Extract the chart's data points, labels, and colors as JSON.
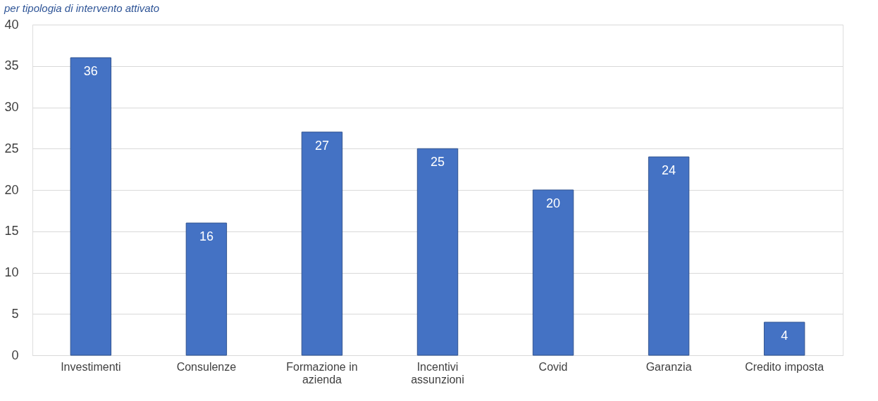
{
  "chart_data": {
    "type": "bar",
    "title": "per tipologia di intervento attivato",
    "categories": [
      "Investimenti",
      "Consulenze",
      "Formazione in azienda",
      "Incentivi assunzioni",
      "Covid",
      "Garanzia",
      "Credito imposta"
    ],
    "values": [
      36,
      16,
      27,
      25,
      20,
      24,
      4
    ],
    "color": "#4472c4",
    "ylim": [
      0,
      40
    ],
    "yticks": [
      0,
      5,
      10,
      15,
      20,
      25,
      30,
      35,
      40
    ],
    "grid": "y",
    "data_labels": true
  }
}
